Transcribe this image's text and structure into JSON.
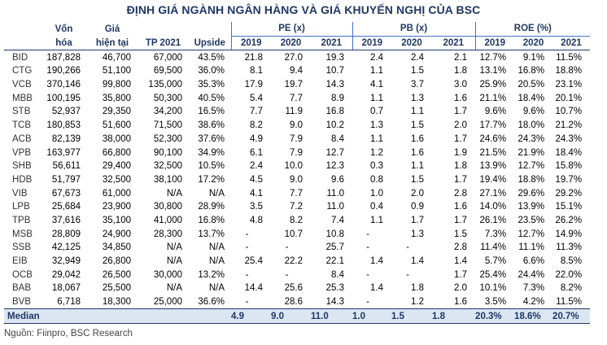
{
  "title": "ĐỊNH GIÁ NGÀNH NGÂN HÀNG VÀ GIÁ KHUYẾN NGHỊ CỦA BSC",
  "headers": {
    "cap_line1": "Vốn",
    "cap_line2": "hóa",
    "price_line1": "Giá",
    "price_line2": "hiện tại",
    "tp": "TP 2021",
    "upside": "Upside",
    "pe": "PE (x)",
    "pb": "PB (x)",
    "roe": "ROE (%)",
    "years": [
      "2019",
      "2020",
      "2021"
    ]
  },
  "rows": [
    {
      "ticker": "BID",
      "cap": "187,828",
      "price": "46,700",
      "tp": "67,000",
      "upside": "43.5%",
      "pe": [
        "21.8",
        "27.0",
        "19.3"
      ],
      "pb": [
        "2.4",
        "2.4",
        "2.1"
      ],
      "roe": [
        "12.7%",
        "9.1%",
        "11.5%"
      ]
    },
    {
      "ticker": "CTG",
      "cap": "190,266",
      "price": "51,100",
      "tp": "69,500",
      "upside": "36.0%",
      "pe": [
        "8.1",
        "9.4",
        "10.7"
      ],
      "pb": [
        "1.1",
        "1.5",
        "1.8"
      ],
      "roe": [
        "13.1%",
        "16.8%",
        "18.8%"
      ]
    },
    {
      "ticker": "VCB",
      "cap": "370,146",
      "price": "99,800",
      "tp": "135,000",
      "upside": "35.3%",
      "pe": [
        "17.9",
        "19.7",
        "14.3"
      ],
      "pb": [
        "4.1",
        "3.7",
        "3.0"
      ],
      "roe": [
        "25.9%",
        "20.5%",
        "23.1%"
      ]
    },
    {
      "ticker": "MBB",
      "cap": "100,195",
      "price": "35,800",
      "tp": "50,300",
      "upside": "40.5%",
      "pe": [
        "5.4",
        "7.7",
        "8.9"
      ],
      "pb": [
        "1.1",
        "1.3",
        "1.6"
      ],
      "roe": [
        "21.1%",
        "18.4%",
        "20.1%"
      ]
    },
    {
      "ticker": "STB",
      "cap": "52,937",
      "price": "29,350",
      "tp": "34,200",
      "upside": "16.5%",
      "pe": [
        "7.7",
        "11.9",
        "16.8"
      ],
      "pb": [
        "0.7",
        "1.1",
        "1.7"
      ],
      "roe": [
        "9.6%",
        "9.6%",
        "10.7%"
      ]
    },
    {
      "ticker": "TCB",
      "cap": "180,853",
      "price": "51,600",
      "tp": "71,500",
      "upside": "38.6%",
      "pe": [
        "8.2",
        "9.0",
        "10.2"
      ],
      "pb": [
        "1.3",
        "1.5",
        "2.0"
      ],
      "roe": [
        "17.7%",
        "18.0%",
        "21.2%"
      ]
    },
    {
      "ticker": "ACB",
      "cap": "82,139",
      "price": "38,000",
      "tp": "52,300",
      "upside": "37.6%",
      "pe": [
        "4.9",
        "7.9",
        "8.4"
      ],
      "pb": [
        "1.1",
        "1.6",
        "1.7"
      ],
      "roe": [
        "24.6%",
        "24.3%",
        "24.3%"
      ]
    },
    {
      "ticker": "VPB",
      "cap": "163,977",
      "price": "66,800",
      "tp": "90,100",
      "upside": "34.9%",
      "pe": [
        "6.1",
        "7.9",
        "12.7"
      ],
      "pb": [
        "1.2",
        "1.6",
        "1.9"
      ],
      "roe": [
        "21.5%",
        "21.9%",
        "18.4%"
      ]
    },
    {
      "ticker": "SHB",
      "cap": "56,611",
      "price": "29,400",
      "tp": "32,500",
      "upside": "10.5%",
      "pe": [
        "2.4",
        "10.0",
        "12.3"
      ],
      "pb": [
        "0.3",
        "1.1",
        "1.8"
      ],
      "roe": [
        "13.9%",
        "12.7%",
        "15.8%"
      ]
    },
    {
      "ticker": "HDB",
      "cap": "51,797",
      "price": "32,500",
      "tp": "38,100",
      "upside": "17.2%",
      "pe": [
        "4.5",
        "9.0",
        "9.6"
      ],
      "pb": [
        "0.8",
        "1.5",
        "1.7"
      ],
      "roe": [
        "19.4%",
        "18.8%",
        "19.7%"
      ]
    },
    {
      "ticker": "VIB",
      "cap": "67,673",
      "price": "61,000",
      "tp": "N/A",
      "upside": "N/A",
      "pe": [
        "4.1",
        "7.7",
        "11.0"
      ],
      "pb": [
        "1.0",
        "2.0",
        "2.8"
      ],
      "roe": [
        "27.1%",
        "29.6%",
        "29.2%"
      ]
    },
    {
      "ticker": "LPB",
      "cap": "25,684",
      "price": "23,900",
      "tp": "30,800",
      "upside": "28.9%",
      "pe": [
        "3.5",
        "7.2",
        "11.0"
      ],
      "pb": [
        "0.4",
        "0.9",
        "1.6"
      ],
      "roe": [
        "14.0%",
        "13.9%",
        "15.1%"
      ]
    },
    {
      "ticker": "TPB",
      "cap": "37,616",
      "price": "35,100",
      "tp": "41,000",
      "upside": "16.8%",
      "pe": [
        "4.8",
        "8.2",
        "7.4"
      ],
      "pb": [
        "1.1",
        "1.7",
        "1.7"
      ],
      "roe": [
        "26.1%",
        "23.5%",
        "26.2%"
      ]
    },
    {
      "ticker": "MSB",
      "cap": "28,809",
      "price": "24,900",
      "tp": "28,300",
      "upside": "13.7%",
      "pe": [
        "-",
        "10.7",
        "10.8"
      ],
      "pb": [
        "-",
        "1.3",
        "1.5"
      ],
      "roe": [
        "7.3%",
        "12.7%",
        "14.9%"
      ]
    },
    {
      "ticker": "SSB",
      "cap": "42,125",
      "price": "34,850",
      "tp": "N/A",
      "upside": "N/A",
      "pe": [
        "-",
        "-",
        "25.7"
      ],
      "pb": [
        "-",
        "-",
        "2.8"
      ],
      "roe": [
        "11.4%",
        "11.1%",
        "11.3%"
      ]
    },
    {
      "ticker": "EIB",
      "cap": "32,949",
      "price": "26,800",
      "tp": "N/A",
      "upside": "N/A",
      "pe": [
        "25.4",
        "22.2",
        "22.1"
      ],
      "pb": [
        "1.4",
        "1.4",
        "1.4"
      ],
      "roe": [
        "5.7%",
        "6.6%",
        "8.5%"
      ]
    },
    {
      "ticker": "OCB",
      "cap": "29,042",
      "price": "26,500",
      "tp": "30,000",
      "upside": "13.2%",
      "pe": [
        "-",
        "-",
        "8.4"
      ],
      "pb": [
        "-",
        "-",
        "1.7"
      ],
      "roe": [
        "25.4%",
        "24.4%",
        "22.0%"
      ]
    },
    {
      "ticker": "BAB",
      "cap": "18,067",
      "price": "25,500",
      "tp": "N/A",
      "upside": "N/A",
      "pe": [
        "14.4",
        "25.6",
        "25.3"
      ],
      "pb": [
        "1.4",
        "1.8",
        "2.0"
      ],
      "roe": [
        "10.1%",
        "7.3%",
        "8.2%"
      ]
    },
    {
      "ticker": "BVB",
      "cap": "6,718",
      "price": "18,300",
      "tp": "25,000",
      "upside": "36.6%",
      "pe": [
        "-",
        "28.6",
        "14.3"
      ],
      "pb": [
        "-",
        "1.2",
        "1.6"
      ],
      "roe": [
        "3.5%",
        "4.2%",
        "11.5%"
      ]
    }
  ],
  "median": {
    "label": "Median",
    "pe": [
      "4.9",
      "9.0",
      "11.0"
    ],
    "pb": [
      "1.0",
      "1.5",
      "1.8"
    ],
    "roe": [
      "20.3%",
      "18.6%",
      "20.7%"
    ]
  },
  "source": "Nguồn: Fiinpro, BSC Research"
}
